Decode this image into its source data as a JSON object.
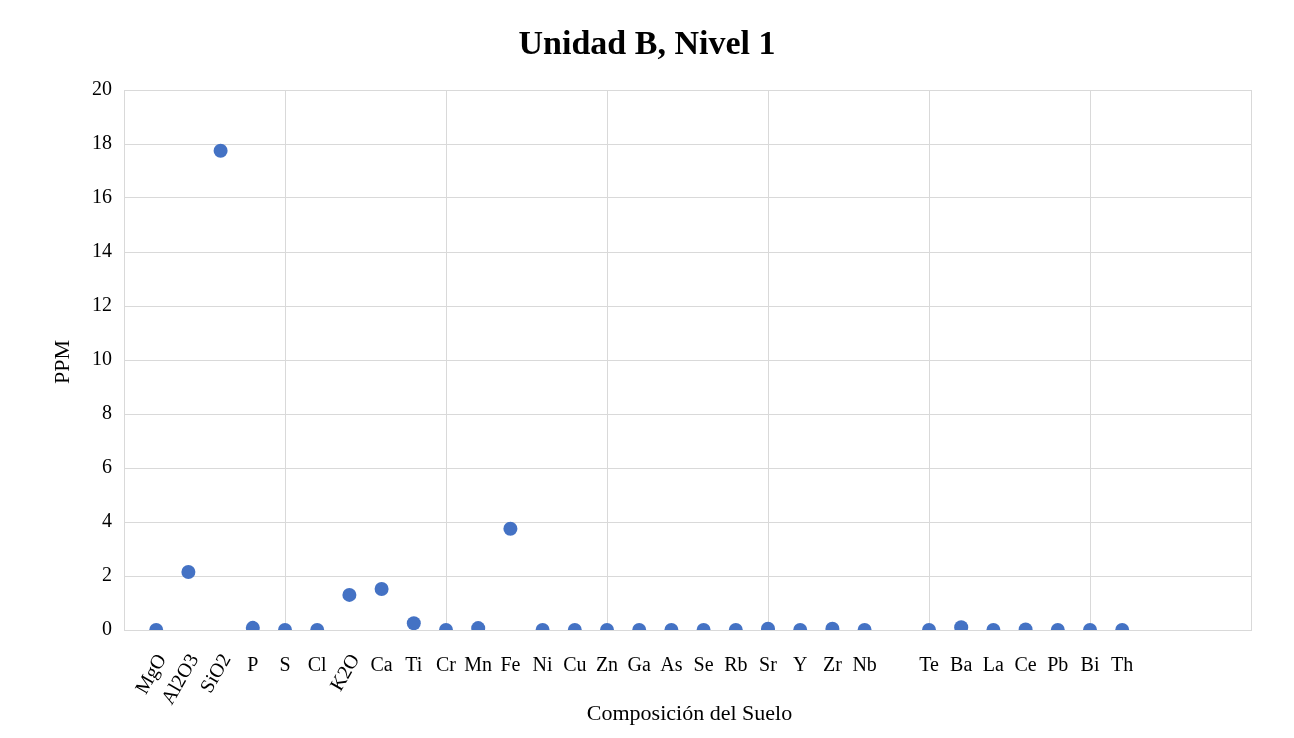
{
  "chart_data": {
    "type": "scatter",
    "title": "Unidad B, Nivel 1",
    "xlabel": "Composición del Suelo",
    "ylabel": "PPM",
    "categories": [
      null,
      "MgO",
      "Al2O3",
      "SiO2",
      "P",
      "S",
      "Cl",
      "K2O",
      "Ca",
      "Ti",
      "Cr",
      "Mn",
      "Fe",
      "Ni",
      "Cu",
      "Zn",
      "Ga",
      "As",
      "Se",
      "Rb",
      "Sr",
      "Y",
      "Zr",
      "Nb",
      null,
      "Te",
      "Ba",
      "La",
      "Ce",
      "Pb",
      "Bi",
      "Th",
      null,
      null,
      null,
      null
    ],
    "series": [
      {
        "color": "#4472c4",
        "values": [
          null,
          0,
          2.15,
          17.75,
          0.08,
          0,
          0,
          1.3,
          1.52,
          0.25,
          0,
          0.07,
          3.75,
          0,
          0,
          0,
          0,
          0,
          0,
          0,
          0.05,
          0,
          0.05,
          0,
          null,
          0,
          0.1,
          0,
          0.02,
          0,
          0,
          0,
          null,
          null,
          null,
          null
        ]
      }
    ],
    "ylim": [
      0,
      20
    ],
    "yticks": [
      0,
      2,
      4,
      6,
      8,
      10,
      12,
      14,
      16,
      18,
      20
    ],
    "grid": true,
    "marker": "circle",
    "legend": false
  }
}
